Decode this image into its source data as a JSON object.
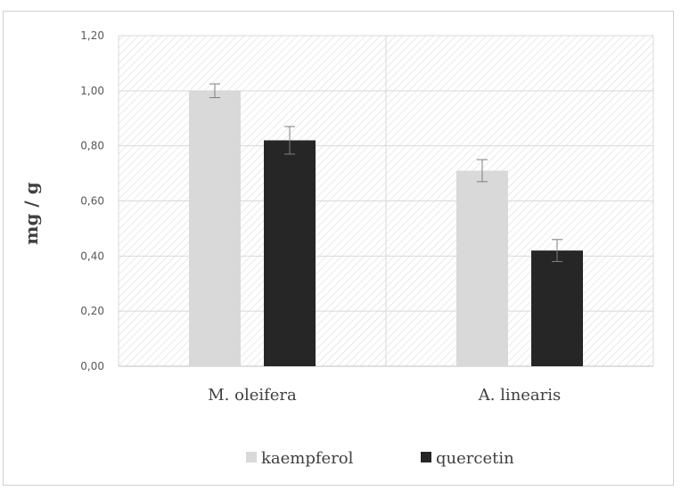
{
  "chart_data": {
    "type": "bar",
    "title": "",
    "xlabel": "",
    "ylabel": "mg / g",
    "ylim": [
      0,
      1.2
    ],
    "yticks": [
      "0,00",
      "0,20",
      "0,40",
      "0,60",
      "0,80",
      "1,00",
      "1,20"
    ],
    "categories": [
      "M. oleifera",
      "A. linearis"
    ],
    "series": [
      {
        "name": "kaempferol",
        "color": "#d9d9d9",
        "values": [
          1.0,
          0.71
        ],
        "errors": [
          0.025,
          0.04
        ]
      },
      {
        "name": "quercetin",
        "color": "#262626",
        "values": [
          0.82,
          0.42
        ],
        "errors": [
          0.05,
          0.04
        ]
      }
    ],
    "grid": true,
    "legend": "bottom-center"
  }
}
